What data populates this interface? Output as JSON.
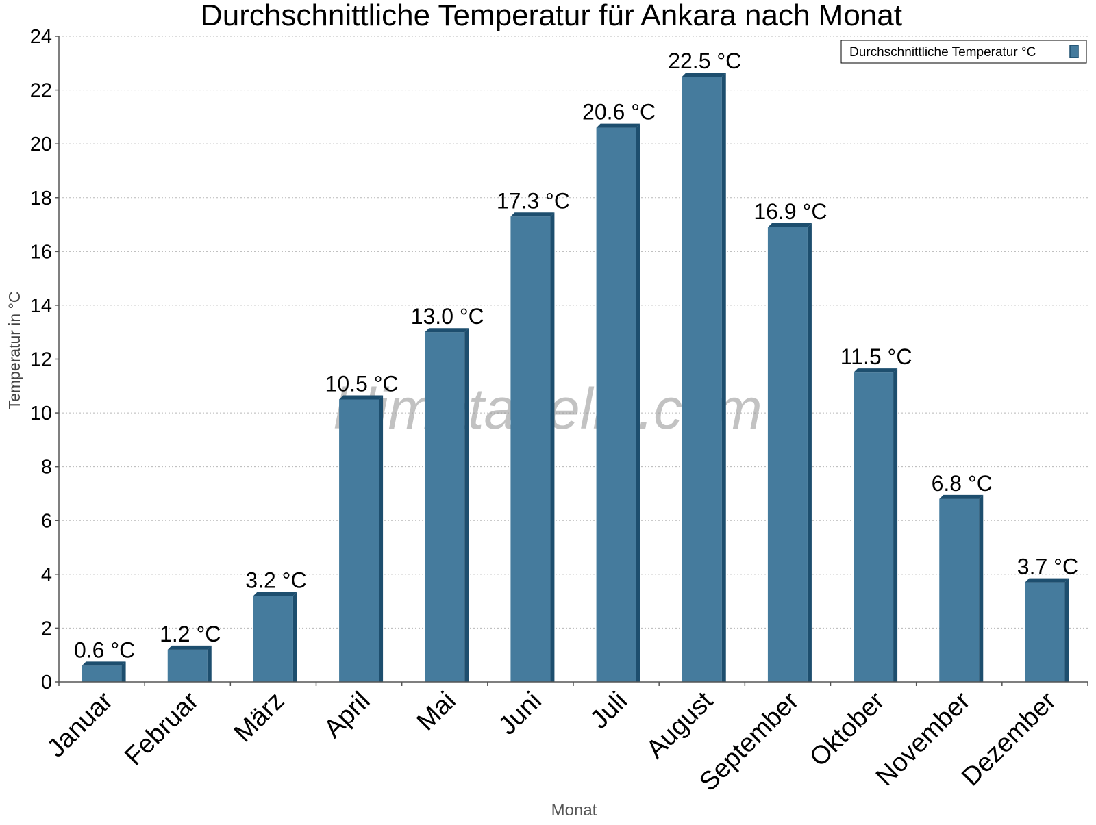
{
  "chart_data": {
    "type": "bar",
    "title": "Durchschnittliche Temperatur für Ankara nach Monat",
    "xlabel": "Monat",
    "ylabel": "Temperatur in °C",
    "categories": [
      "Januar",
      "Februar",
      "März",
      "April",
      "Mai",
      "Juni",
      "Juli",
      "August",
      "September",
      "Oktober",
      "November",
      "Dezember"
    ],
    "series": [
      {
        "name": "Durchschnittliche Temperatur °C",
        "values": [
          0.6,
          1.2,
          3.2,
          10.5,
          13.0,
          17.3,
          20.6,
          22.5,
          16.9,
          11.5,
          6.8,
          3.7
        ],
        "labels": [
          "0.6 °C",
          "1.2 °C",
          "3.2 °C",
          "10.5 °C",
          "13.0 °C",
          "17.3 °C",
          "20.6 °C",
          "22.5 °C",
          "16.9 °C",
          "11.5 °C",
          "6.8 °C",
          "3.7 °C"
        ],
        "color": "#457b9d",
        "edge_color": "#1d4e6e"
      }
    ],
    "ylim": [
      0,
      24
    ],
    "yticks": [
      0,
      2,
      4,
      6,
      8,
      10,
      12,
      14,
      16,
      18,
      20,
      22,
      24
    ],
    "grid": true,
    "legend_position": "top-right",
    "watermark": "klimatabelle.com"
  }
}
